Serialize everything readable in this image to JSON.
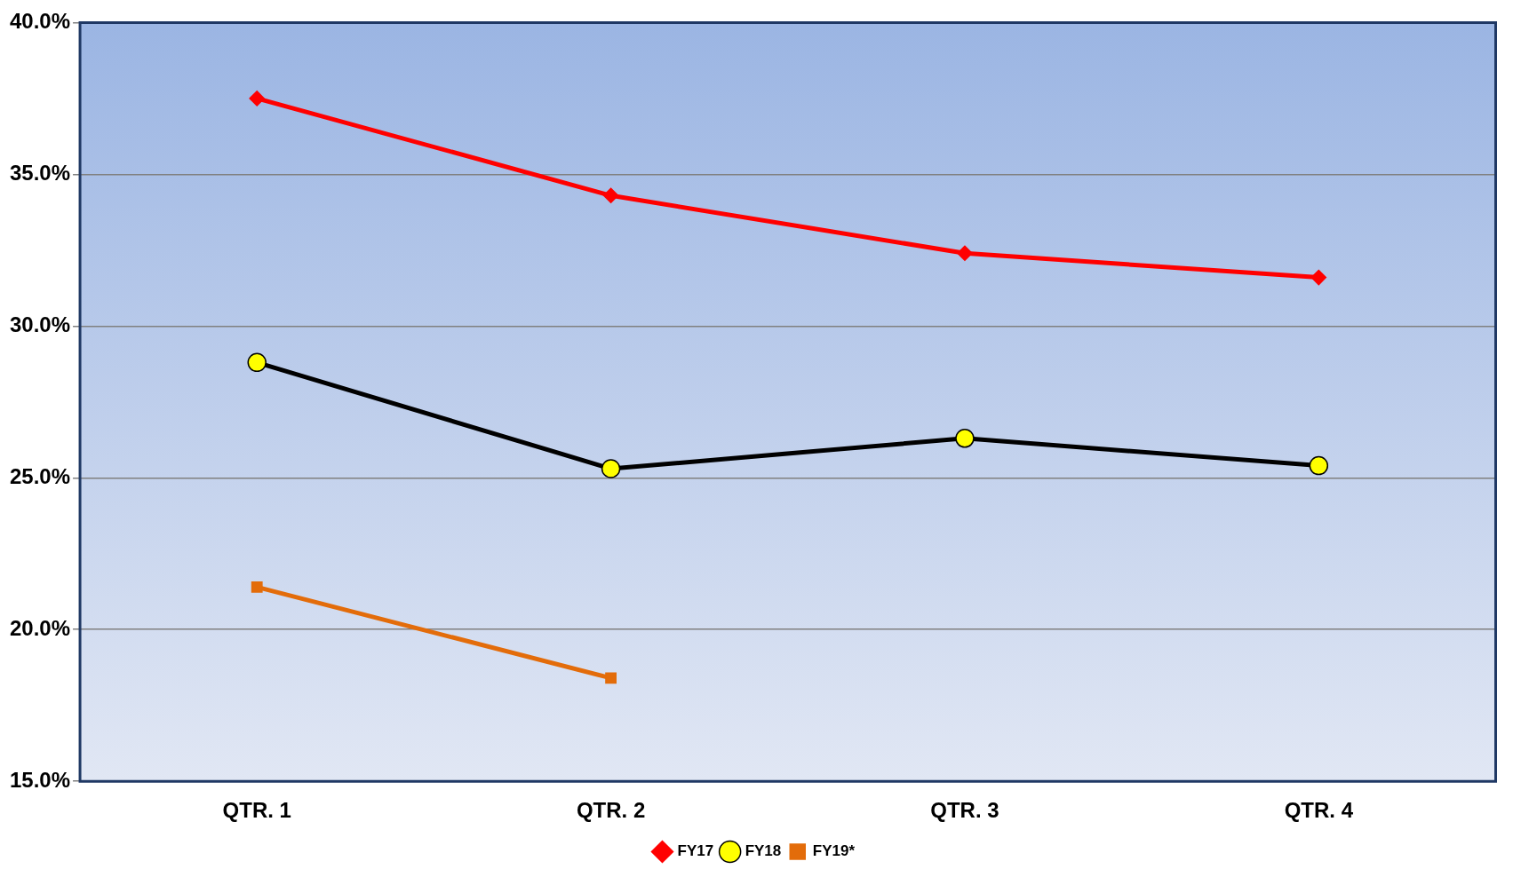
{
  "chart_data": {
    "type": "line",
    "categories": [
      "QTR. 1",
      "QTR. 2",
      "QTR. 3",
      "QTR. 4"
    ],
    "series": [
      {
        "name": "FY17",
        "color": "#ff0000",
        "marker": "diamond",
        "values": [
          37.5,
          34.3,
          32.4,
          31.6
        ]
      },
      {
        "name": "FY18",
        "color": "#000000",
        "marker": "circle",
        "values": [
          28.8,
          25.3,
          26.3,
          25.4
        ]
      },
      {
        "name": "FY19*",
        "color": "#e36c0a",
        "marker": "square",
        "values": [
          21.4,
          18.4,
          null,
          null
        ]
      }
    ],
    "ylim": [
      15,
      40
    ],
    "yticks": [
      {
        "value": 15,
        "label": "15.0%"
      },
      {
        "value": 20,
        "label": "20.0%"
      },
      {
        "value": 25,
        "label": "25.0%"
      },
      {
        "value": 30,
        "label": "30.0%"
      },
      {
        "value": 35,
        "label": "35.0%"
      },
      {
        "value": 40,
        "label": "40.0%"
      }
    ],
    "grid": "y",
    "legend": "bottom",
    "line_style": "solid"
  }
}
